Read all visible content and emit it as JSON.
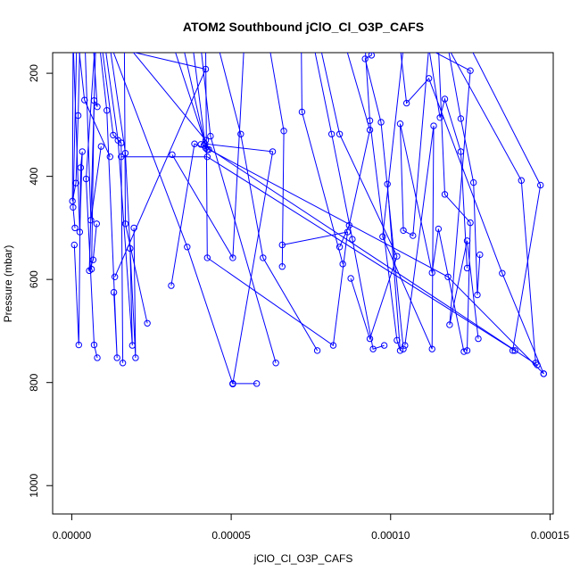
{
  "chart_data": {
    "type": "line",
    "title": "ATOM2 Southbound jClO_Cl_O3P_CAFS",
    "xlabel": "jClO_Cl_O3P_CAFS",
    "ylabel": "Pressure (mbar)",
    "xlim": [
      -6e-06,
      0.000151
    ],
    "ylim": [
      1055,
      160
    ],
    "y_inverted": true,
    "grid": false,
    "legend": "none",
    "marker": "open-circle",
    "color": "#0000ff",
    "x_ticks": [
      0.0,
      5e-05,
      0.0001,
      0.00015
    ],
    "x_tick_labels": [
      "0.00000",
      "0.00005",
      "0.00010",
      "0.00015"
    ],
    "y_ticks": [
      200,
      400,
      600,
      800,
      1000
    ],
    "y_tick_labels": [
      "200",
      "400",
      "600",
      "800",
      "1000"
    ],
    "series": [
      {
        "x": [
          4e-07,
          2e-07,
          1.3e-06,
          2e-06,
          2.5e-06
        ],
        "y": [
          150,
          448,
          413,
          282,
          150
        ]
      },
      {
        "x": [
          5e-07,
          2.5e-06,
          3.3e-06,
          2.8e-06,
          2.2e-06,
          8e-07
        ],
        "y": [
          150,
          508,
          352,
          383,
          727,
          533
        ]
      },
      {
        "x": [
          7.2e-06,
          4.5e-06,
          7e-06,
          8e-06
        ],
        "y": [
          150,
          405,
          727,
          752
        ]
      },
      {
        "x": [
          6.8e-06,
          8e-06,
          7e-06,
          6.2e-06
        ],
        "y": [
          150,
          265,
          253,
          580
        ]
      },
      {
        "x": [
          7.5e-06,
          5.5e-06,
          6.7e-06,
          7.8e-06
        ],
        "y": [
          150,
          583,
          562,
          492
        ]
      },
      {
        "x": [
          8.8e-06,
          1.1e-05,
          1.42e-05,
          1.32e-05
        ],
        "y": [
          150,
          272,
          752,
          625
        ]
      },
      {
        "x": [
          9.5e-06,
          1.3e-05,
          1.55e-05,
          1.6e-05
        ],
        "y": [
          150,
          320,
          335,
          762
        ]
      },
      {
        "x": [
          1.05e-05,
          1.45e-05,
          1.9e-05,
          1.83e-05
        ],
        "y": [
          150,
          330,
          728,
          540
        ]
      },
      {
        "x": [
          1.2e-05,
          1.68e-05,
          2e-05,
          1.95e-05
        ],
        "y": [
          150,
          355,
          752,
          500
        ]
      },
      {
        "x": [
          1.65e-05,
          1.68e-05,
          2.37e-05
        ],
        "y": [
          150,
          492,
          685
        ]
      },
      {
        "x": [
          1.3e-05,
          4.2e-05,
          1.35e-05
        ],
        "y": [
          150,
          192,
          595
        ]
      },
      {
        "x": [
          3.5e-05,
          4.18e-05,
          6.3e-05,
          5.05e-05
        ],
        "y": [
          150,
          337,
          352,
          802
        ]
      },
      {
        "x": [
          5.05e-05,
          5.8e-05
        ],
        "y": [
          802,
          802
        ]
      },
      {
        "x": [
          3.2e-05,
          4.25e-05,
          3.85e-05,
          3.12e-05
        ],
        "y": [
          150,
          348,
          337,
          612
        ]
      },
      {
        "x": [
          1.25e-05,
          3.62e-05,
          5.05e-05
        ],
        "y": [
          150,
          537,
          803
        ]
      },
      {
        "x": [
          4.05e-05,
          4.35e-05,
          6.4e-05
        ],
        "y": [
          150,
          322,
          762
        ]
      },
      {
        "x": [
          5.4e-05,
          5.05e-05,
          3.15e-05
        ],
        "y": [
          150,
          558,
          358
        ]
      },
      {
        "x": [
          4.6e-05,
          5.3e-05,
          6e-05,
          7.7e-05
        ],
        "y": [
          150,
          318,
          558,
          738
        ]
      },
      {
        "x": [
          4.2e-05,
          4.25e-05,
          8.2e-05,
          8.65e-05,
          6.6e-05
        ],
        "y": [
          150,
          558,
          728,
          508,
          533
        ]
      },
      {
        "x": [
          6.2e-05,
          6.65e-05,
          6.6e-05
        ],
        "y": [
          150,
          312,
          575
        ]
      },
      {
        "x": [
          7.2e-05,
          7.22e-05,
          8.5e-05
        ],
        "y": [
          150,
          275,
          570
        ]
      },
      {
        "x": [
          7.6e-05,
          8.15e-05,
          8.8e-05,
          9.45e-05,
          9.8e-05
        ],
        "y": [
          150,
          318,
          522,
          735,
          728
        ]
      },
      {
        "x": [
          7.8e-05,
          8.4e-05,
          0.000102,
          9.35e-05,
          8.75e-05
        ],
        "y": [
          150,
          318,
          555,
          715,
          598
        ]
      },
      {
        "x": [
          9.2e-05,
          9.35e-05,
          0.000102,
          0.000103,
          9.9e-05
        ],
        "y": [
          150,
          292,
          718,
          738,
          415
        ]
      },
      {
        "x": [
          9.4e-05,
          9.4e-05,
          9.2e-05,
          9.7e-05,
          0.000104
        ],
        "y": [
          150,
          165,
          172,
          295,
          735
        ]
      },
      {
        "x": [
          8.6e-05,
          9.35e-05,
          8.7e-05,
          8.4e-05
        ],
        "y": [
          150,
          310,
          495,
          537
        ]
      },
      {
        "x": [
          0.000104,
          9.75e-05,
          0.000113,
          0.0001135,
          0.0001045
        ],
        "y": [
          150,
          517,
          735,
          302,
          728
        ]
      },
      {
        "x": [
          0.000112,
          0.000107,
          0.000104,
          0.000103,
          0.000113,
          0.000115,
          0.000123
        ],
        "y": [
          150,
          515,
          505,
          298,
          587,
          502,
          740
        ]
      },
      {
        "x": [
          0.000111,
          0.000125,
          0.0001185,
          0.000124,
          0.0001275
        ],
        "y": [
          150,
          195,
          688,
          525,
          715
        ]
      },
      {
        "x": [
          0.000118,
          0.000141,
          0.0001455
        ],
        "y": [
          150,
          408,
          762
        ]
      },
      {
        "x": [
          0.000103,
          0.000105,
          0.000112,
          0.000135,
          0.000148
        ],
        "y": [
          150,
          258,
          210,
          588,
          783
        ]
      },
      {
        "x": [
          0.000112,
          0.0001155,
          0.000117,
          0.000122,
          0.000124
        ],
        "y": [
          150,
          286,
          250,
          352,
          578
        ]
      },
      {
        "x": [
          0.000115,
          0.000117,
          0.000125,
          0.000124
        ],
        "y": [
          150,
          435,
          490,
          738
        ]
      },
      {
        "x": [
          0.000125,
          0.000147,
          0.0001383
        ],
        "y": [
          150,
          417,
          738
        ]
      },
      {
        "x": [
          0.000118,
          0.000122,
          0.000126,
          0.0001272,
          0.000128
        ],
        "y": [
          150,
          288,
          412,
          630,
          552
        ]
      },
      {
        "x": [
          4.3e-05,
          0.000118,
          0.000148
        ],
        "y": [
          348,
          595,
          783
        ]
      },
      {
        "x": [
          1.8e-05,
          4.2e-05,
          4.05e-05
        ],
        "y": [
          150,
          330,
          338
        ]
      },
      {
        "x": [
          3.8e-05,
          4.2e-05,
          4.15e-05,
          0.000146
        ],
        "y": [
          150,
          345,
          340,
          766
        ]
      },
      {
        "x": [
          1.55e-05,
          4.25e-05,
          0.000139
        ],
        "y": [
          362,
          362,
          738
        ]
      },
      {
        "x": [
          4.2e-06,
          6e-06,
          9.2e-06
        ],
        "y": [
          150,
          485,
          342
        ]
      },
      {
        "x": [
          2.2e-06,
          4e-06,
          1.2e-05
        ],
        "y": [
          150,
          252,
          362
        ]
      },
      {
        "x": [
          1.5e-06,
          4e-07,
          1e-06
        ],
        "y": [
          150,
          460,
          500
        ]
      }
    ]
  }
}
